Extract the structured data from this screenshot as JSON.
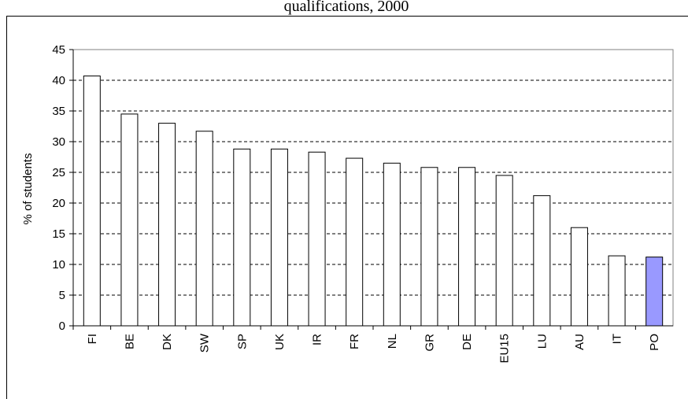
{
  "chart_data": {
    "type": "bar",
    "title": "qualifications, 2000",
    "y_label": "% of students",
    "categories": [
      "FI",
      "BE",
      "DK",
      "SW",
      "SP",
      "UK",
      "IR",
      "FR",
      "NL",
      "GR",
      "DE",
      "EU15",
      "LU",
      "AU",
      "IT",
      "PO"
    ],
    "values": [
      40.7,
      34.5,
      33,
      31.7,
      28.8,
      28.8,
      28.3,
      27.3,
      26.5,
      25.8,
      25.8,
      24.5,
      21.2,
      16,
      11.4,
      11.2
    ],
    "colors": [
      "#ffffff",
      "#ffffff",
      "#ffffff",
      "#ffffff",
      "#ffffff",
      "#ffffff",
      "#ffffff",
      "#ffffff",
      "#ffffff",
      "#ffffff",
      "#ffffff",
      "#ffffff",
      "#ffffff",
      "#ffffff",
      "#ffffff",
      "#9999ff"
    ],
    "ylim": [
      0,
      45
    ],
    "yticks": [
      0,
      5,
      10,
      15,
      20,
      25,
      30,
      35,
      40,
      45
    ],
    "grid": true
  }
}
